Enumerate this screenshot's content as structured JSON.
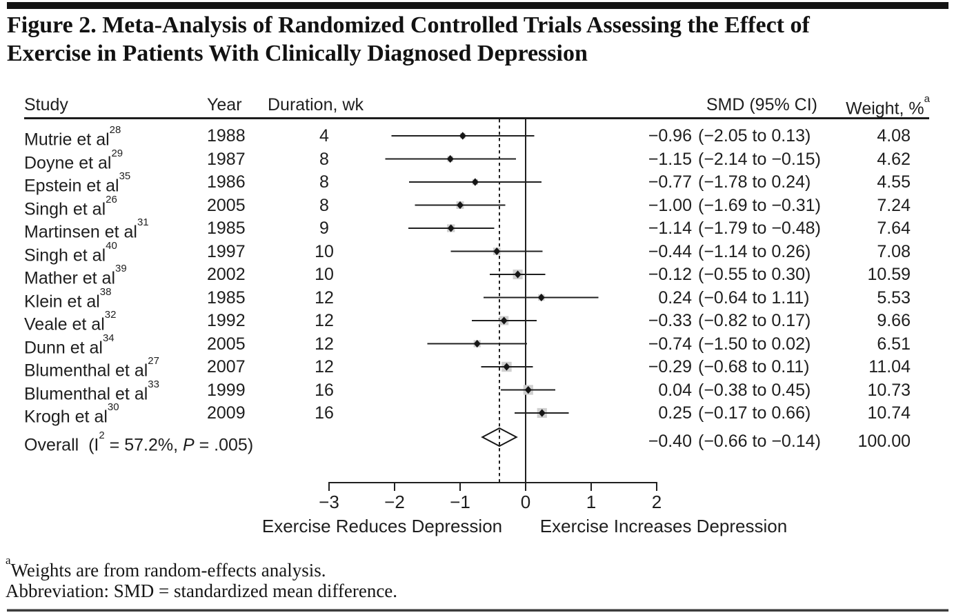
{
  "figure": {
    "title_line1": "Figure 2. Meta-Analysis of Randomized Controlled Trials Assessing the Effect of",
    "title_line2": "Exercise in Patients With Clinically Diagnosed Depression"
  },
  "table": {
    "headers": {
      "study": "Study",
      "year": "Year",
      "duration": "Duration, wk",
      "smd": "SMD (95% CI)",
      "weight": "Weight, %",
      "weight_sup": "a"
    }
  },
  "chart_data": {
    "type": "forest",
    "x_axis": {
      "range": [
        -3,
        2
      ],
      "ticks": [
        -3,
        -2,
        -1,
        0,
        1,
        2
      ],
      "tick_labels": [
        "−3",
        "−2",
        "−1",
        "0",
        "1",
        "2"
      ],
      "zero_ref_line": 0,
      "overall_dashed_line": -0.4,
      "label_negative": "Exercise Reduces Depression",
      "label_positive": "Exercise Increases Depression"
    },
    "studies": [
      {
        "study": "Mutrie et al",
        "ref": "28",
        "year": "1988",
        "duration_wk": "4",
        "smd": -0.96,
        "lo": -2.05,
        "hi": 0.13,
        "smd_text": "−0.96",
        "ci_text": "(−2.05 to 0.13)",
        "weight": 4.08,
        "weight_text": "4.08"
      },
      {
        "study": "Doyne et al",
        "ref": "29",
        "year": "1987",
        "duration_wk": "8",
        "smd": -1.15,
        "lo": -2.14,
        "hi": -0.15,
        "smd_text": "−1.15",
        "ci_text": "(−2.14 to −0.15)",
        "weight": 4.62,
        "weight_text": "4.62"
      },
      {
        "study": "Epstein et al",
        "ref": "35",
        "year": "1986",
        "duration_wk": "8",
        "smd": -0.77,
        "lo": -1.78,
        "hi": 0.24,
        "smd_text": "−0.77",
        "ci_text": "(−1.78 to 0.24)",
        "weight": 4.55,
        "weight_text": "4.55"
      },
      {
        "study": "Singh et al",
        "ref": "26",
        "year": "2005",
        "duration_wk": "8",
        "smd": -1.0,
        "lo": -1.69,
        "hi": -0.31,
        "smd_text": "−1.00",
        "ci_text": "(−1.69 to −0.31)",
        "weight": 7.24,
        "weight_text": "7.24"
      },
      {
        "study": "Martinsen et al",
        "ref": "31",
        "year": "1985",
        "duration_wk": "9",
        "smd": -1.14,
        "lo": -1.79,
        "hi": -0.48,
        "smd_text": "−1.14",
        "ci_text": "(−1.79 to −0.48)",
        "weight": 7.64,
        "weight_text": "7.64"
      },
      {
        "study": "Singh et al",
        "ref": "40",
        "year": "1997",
        "duration_wk": "10",
        "smd": -0.44,
        "lo": -1.14,
        "hi": 0.26,
        "smd_text": "−0.44",
        "ci_text": "(−1.14 to 0.26)",
        "weight": 7.08,
        "weight_text": "7.08"
      },
      {
        "study": "Mather et al",
        "ref": "39",
        "year": "2002",
        "duration_wk": "10",
        "smd": -0.12,
        "lo": -0.55,
        "hi": 0.3,
        "smd_text": "−0.12",
        "ci_text": "(−0.55 to 0.30)",
        "weight": 10.59,
        "weight_text": "10.59"
      },
      {
        "study": "Klein et al",
        "ref": "38",
        "year": "1985",
        "duration_wk": "12",
        "smd": 0.24,
        "lo": -0.64,
        "hi": 1.11,
        "smd_text": "0.24",
        "ci_text": "(−0.64 to 1.11)",
        "weight": 5.53,
        "weight_text": "5.53"
      },
      {
        "study": "Veale et al",
        "ref": "32",
        "year": "1992",
        "duration_wk": "12",
        "smd": -0.33,
        "lo": -0.82,
        "hi": 0.17,
        "smd_text": "−0.33",
        "ci_text": "(−0.82 to 0.17)",
        "weight": 9.66,
        "weight_text": "9.66"
      },
      {
        "study": "Dunn et al",
        "ref": "34",
        "year": "2005",
        "duration_wk": "12",
        "smd": -0.74,
        "lo": -1.5,
        "hi": 0.02,
        "smd_text": "−0.74",
        "ci_text": "(−1.50 to 0.02)",
        "weight": 6.51,
        "weight_text": "6.51"
      },
      {
        "study": "Blumenthal et al",
        "ref": "27",
        "year": "2007",
        "duration_wk": "12",
        "smd": -0.29,
        "lo": -0.68,
        "hi": 0.11,
        "smd_text": "−0.29",
        "ci_text": "(−0.68 to 0.11)",
        "weight": 11.04,
        "weight_text": "11.04"
      },
      {
        "study": "Blumenthal et al",
        "ref": "33",
        "year": "1999",
        "duration_wk": "16",
        "smd": 0.04,
        "lo": -0.38,
        "hi": 0.45,
        "smd_text": "0.04",
        "ci_text": "(−0.38 to 0.45)",
        "weight": 10.73,
        "weight_text": "10.73"
      },
      {
        "study": "Krogh et al",
        "ref": "30",
        "year": "2009",
        "duration_wk": "16",
        "smd": 0.25,
        "lo": -0.17,
        "hi": 0.66,
        "smd_text": "0.25",
        "ci_text": "(−0.17 to 0.66)",
        "weight": 10.74,
        "weight_text": "10.74"
      }
    ],
    "overall": {
      "label_prefix": "Overall  (I",
      "label_sup": "2",
      "label_mid": " = 57.2%, ",
      "label_p": "P",
      "label_suffix": " = .005)",
      "smd": -0.4,
      "lo": -0.66,
      "hi": -0.14,
      "smd_text": "−0.40",
      "ci_text": "(−0.66 to −0.14)",
      "weight_text": "100.00"
    }
  },
  "footnotes": {
    "line1_sup": "a",
    "line1": "Weights are from random-effects analysis.",
    "line2": "Abbreviation: SMD = standardized mean difference."
  }
}
